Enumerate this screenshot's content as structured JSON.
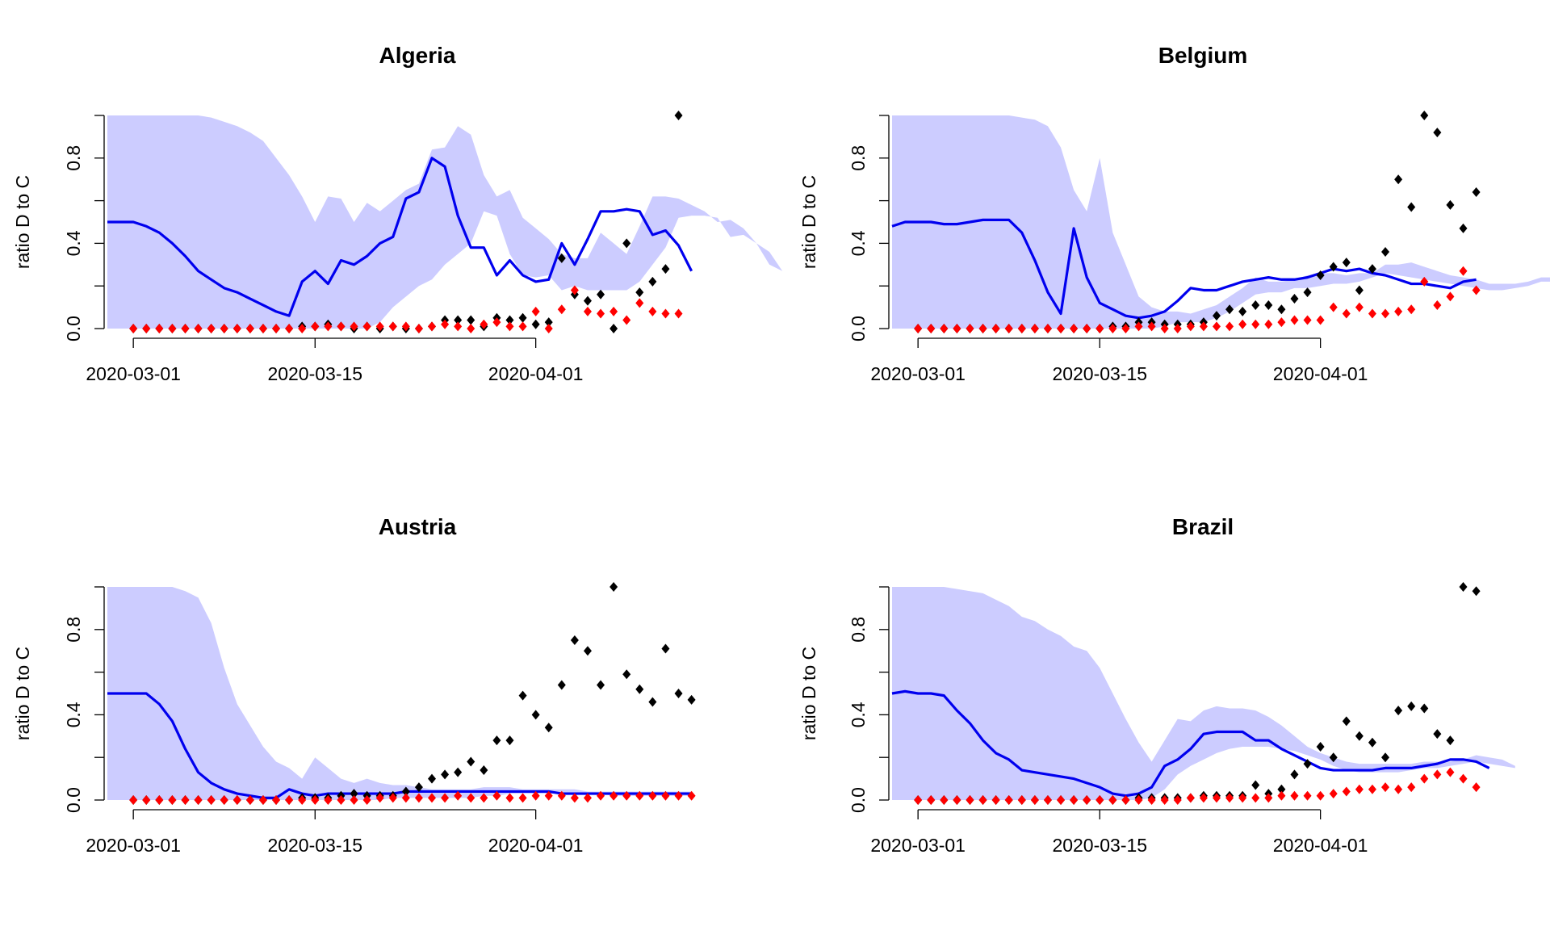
{
  "colors": {
    "band": "#ccccff",
    "line": "#0000ee",
    "black_points": "#000000",
    "red_points": "#ff0000"
  },
  "chart_data": [
    {
      "type": "line",
      "title": "Algeria",
      "ylabel": "ratio D to C",
      "xlabel": "",
      "ylim": [
        0,
        1
      ],
      "yticks": [
        "0.0",
        "0.4",
        "0.8"
      ],
      "xticks": [
        "2020-03-01",
        "2020-03-15",
        "2020-04-01"
      ],
      "band_lower": [
        0,
        0,
        0,
        0,
        0,
        0,
        0,
        0,
        0,
        0,
        0,
        0,
        0,
        0,
        0,
        0,
        0,
        0,
        0,
        0,
        0,
        0.03,
        0.1,
        0.15,
        0.2,
        0.23,
        0.3,
        0.35,
        0.4,
        0.55,
        0.53,
        0.35,
        0.25,
        0.24,
        0.25,
        0.18,
        0.2,
        0.18,
        0.18,
        0.18,
        0.18,
        0.22,
        0.3,
        0.38,
        0.52,
        0.53,
        0.53,
        0.52,
        0.43,
        0.44,
        0.4,
        0.36,
        0.27
      ],
      "band_upper": [
        1,
        1,
        1,
        1,
        1,
        1,
        1,
        1,
        0.99,
        0.97,
        0.95,
        0.92,
        0.88,
        0.8,
        0.72,
        0.62,
        0.5,
        0.62,
        0.61,
        0.5,
        0.59,
        0.55,
        0.6,
        0.65,
        0.68,
        0.84,
        0.85,
        0.95,
        0.91,
        0.72,
        0.62,
        0.65,
        0.52,
        0.47,
        0.42,
        0.35,
        0.33,
        0.33,
        0.45,
        0.4,
        0.35,
        0.48,
        0.62,
        0.62,
        0.61,
        0.58,
        0.55,
        0.5,
        0.51,
        0.47,
        0.4,
        0.3,
        0.27
      ],
      "series": [
        {
          "kind": "line",
          "values": [
            0.5,
            0.5,
            0.5,
            0.48,
            0.45,
            0.4,
            0.34,
            0.27,
            0.23,
            0.19,
            0.17,
            0.14,
            0.11,
            0.08,
            0.06,
            0.22,
            0.27,
            0.21,
            0.32,
            0.3,
            0.34,
            0.4,
            0.43,
            0.61,
            0.64,
            0.8,
            0.76,
            0.53,
            0.38,
            0.38,
            0.25,
            0.32,
            0.25,
            0.22,
            0.23,
            0.4,
            0.3,
            0.42,
            0.55,
            0.55,
            0.56,
            0.55,
            0.44,
            0.46,
            0.39,
            0.27
          ]
        },
        {
          "kind": "points",
          "color": "black",
          "values": [
            0,
            0,
            0,
            0,
            0,
            0,
            0,
            0,
            0,
            0,
            0,
            0,
            0,
            0.01,
            0.01,
            0.02,
            0.01,
            0,
            0.01,
            0,
            0.01,
            0,
            0,
            0.01,
            0.04,
            0.04,
            0.04,
            0.01,
            0.05,
            0.04,
            0.05,
            0.02,
            0.03,
            0.33,
            0.16,
            0.13,
            0.16,
            0,
            0.4,
            0.17,
            0.22,
            0.28,
            1.0
          ]
        },
        {
          "kind": "points",
          "color": "red",
          "values": [
            0,
            0,
            0,
            0,
            0,
            0,
            0,
            0,
            0,
            0,
            0,
            0,
            0,
            0,
            0.01,
            0.01,
            0.01,
            0.01,
            0.01,
            0.01,
            0.01,
            0.01,
            0,
            0.01,
            0.02,
            0.01,
            0,
            0.02,
            0.03,
            0.01,
            0.01,
            0.08,
            0,
            0.09,
            0.18,
            0.08,
            0.07,
            0.08,
            0.04,
            0.12,
            0.08,
            0.07,
            0.07
          ]
        }
      ]
    },
    {
      "type": "line",
      "title": "Belgium",
      "ylabel": "ratio D to C",
      "xlabel": "",
      "ylim": [
        0,
        1
      ],
      "yticks": [
        "0.0",
        "0.4",
        "0.8"
      ],
      "xticks": [
        "2020-03-01",
        "2020-03-15",
        "2020-04-01"
      ],
      "band_lower": [
        0,
        0,
        0,
        0,
        0,
        0,
        0,
        0,
        0,
        0,
        0,
        0,
        0,
        0,
        0,
        0,
        0,
        0,
        0,
        0,
        0,
        0.01,
        0.03,
        0.03,
        0.03,
        0.05,
        0.08,
        0.12,
        0.16,
        0.17,
        0.17,
        0.19,
        0.19,
        0.2,
        0.21,
        0.21,
        0.22,
        0.24,
        0.26,
        0.25,
        0.24,
        0.23,
        0.22,
        0.21,
        0.2,
        0.19,
        0.18,
        0.18,
        0.19,
        0.2,
        0.22,
        0.22
      ],
      "band_upper": [
        1,
        1,
        1,
        1,
        1,
        1,
        1,
        1,
        1,
        1,
        0.99,
        0.98,
        0.95,
        0.85,
        0.65,
        0.55,
        0.8,
        0.45,
        0.3,
        0.15,
        0.1,
        0.08,
        0.08,
        0.07,
        0.09,
        0.11,
        0.15,
        0.19,
        0.24,
        0.22,
        0.22,
        0.23,
        0.25,
        0.26,
        0.26,
        0.25,
        0.26,
        0.26,
        0.3,
        0.3,
        0.31,
        0.29,
        0.27,
        0.25,
        0.24,
        0.23,
        0.21,
        0.21,
        0.21,
        0.22,
        0.24,
        0.24
      ],
      "series": [
        {
          "kind": "line",
          "values": [
            0.48,
            0.5,
            0.5,
            0.5,
            0.49,
            0.49,
            0.5,
            0.51,
            0.51,
            0.51,
            0.45,
            0.32,
            0.17,
            0.07,
            0.47,
            0.24,
            0.12,
            0.09,
            0.06,
            0.05,
            0.06,
            0.08,
            0.13,
            0.19,
            0.18,
            0.18,
            0.2,
            0.22,
            0.23,
            0.24,
            0.23,
            0.23,
            0.24,
            0.26,
            0.28,
            0.27,
            0.28,
            0.26,
            0.25,
            0.23,
            0.21,
            0.21,
            0.2,
            0.19,
            0.22,
            0.23
          ]
        },
        {
          "kind": "points",
          "color": "black",
          "values": [
            0,
            0,
            0,
            0,
            0,
            0,
            0,
            0,
            0,
            0,
            0,
            0,
            0,
            0,
            0,
            0.01,
            0.01,
            0.03,
            0.03,
            0.02,
            0.02,
            0.02,
            0.03,
            0.06,
            0.09,
            0.08,
            0.11,
            0.11,
            0.09,
            0.14,
            0.17,
            0.25,
            0.29,
            0.31,
            0.18,
            0.28,
            0.36,
            0.7,
            0.57,
            1.0,
            0.92,
            0.58,
            0.47,
            0.64
          ]
        },
        {
          "kind": "points",
          "color": "red",
          "values": [
            0,
            0,
            0,
            0,
            0,
            0,
            0,
            0,
            0,
            0,
            0,
            0,
            0,
            0,
            0,
            0,
            0,
            0.01,
            0.01,
            0,
            0,
            0.01,
            0.01,
            0.01,
            0.01,
            0.02,
            0.02,
            0.02,
            0.03,
            0.04,
            0.04,
            0.04,
            0.1,
            0.07,
            0.1,
            0.07,
            0.07,
            0.08,
            0.09,
            0.22,
            0.11,
            0.15,
            0.27,
            0.18
          ]
        }
      ]
    },
    {
      "type": "line",
      "title": "Austria",
      "ylabel": "ratio D to C",
      "xlabel": "",
      "ylim": [
        0,
        1
      ],
      "yticks": [
        "0.0",
        "0.4",
        "0.8"
      ],
      "xticks": [
        "2020-03-01",
        "2020-03-15",
        "2020-04-01"
      ],
      "band_lower": [
        0,
        0,
        0,
        0,
        0,
        0,
        0,
        0,
        0,
        0,
        0,
        0,
        0,
        0,
        0,
        0,
        0,
        0,
        0,
        0,
        0,
        0,
        0.01,
        0.01,
        0.01,
        0.01,
        0.01,
        0.01,
        0.01,
        0.02,
        0.02,
        0.03,
        0.03,
        0.03,
        0.03,
        0.03,
        0.03,
        0.03,
        0.03,
        0.02,
        0.02,
        0.02,
        0.02,
        0.02,
        0.02,
        0.02
      ],
      "band_upper": [
        1,
        1,
        1,
        1,
        1,
        1,
        0.98,
        0.95,
        0.83,
        0.62,
        0.45,
        0.35,
        0.25,
        0.18,
        0.15,
        0.1,
        0.2,
        0.15,
        0.1,
        0.08,
        0.1,
        0.08,
        0.07,
        0.07,
        0.06,
        0.05,
        0.05,
        0.05,
        0.05,
        0.06,
        0.06,
        0.06,
        0.05,
        0.05,
        0.05,
        0.05,
        0.05,
        0.04,
        0.04,
        0.04,
        0.04,
        0.04,
        0.04,
        0.04,
        0.04,
        0.04
      ],
      "series": [
        {
          "kind": "line",
          "values": [
            0.5,
            0.5,
            0.5,
            0.5,
            0.45,
            0.37,
            0.24,
            0.13,
            0.08,
            0.05,
            0.03,
            0.02,
            0.01,
            0.01,
            0.05,
            0.03,
            0.02,
            0.03,
            0.03,
            0.03,
            0.03,
            0.03,
            0.03,
            0.04,
            0.04,
            0.04,
            0.04,
            0.04,
            0.04,
            0.04,
            0.04,
            0.04,
            0.04,
            0.04,
            0.04,
            0.03,
            0.03,
            0.03,
            0.03,
            0.03,
            0.03,
            0.03,
            0.03,
            0.03,
            0.03,
            0.03
          ]
        },
        {
          "kind": "points",
          "color": "black",
          "values": [
            0,
            0,
            0,
            0,
            0,
            0,
            0,
            0,
            0,
            0,
            0,
            0,
            0,
            0.01,
            0.01,
            0.01,
            0.02,
            0.03,
            0.02,
            0.02,
            0.02,
            0.04,
            0.06,
            0.1,
            0.12,
            0.13,
            0.18,
            0.14,
            0.28,
            0.28,
            0.49,
            0.4,
            0.34,
            0.54,
            0.75,
            0.7,
            0.54,
            1.0,
            0.59,
            0.52,
            0.46,
            0.71,
            0.5,
            0.47
          ]
        },
        {
          "kind": "points",
          "color": "red",
          "values": [
            0,
            0,
            0,
            0,
            0,
            0,
            0,
            0,
            0,
            0,
            0,
            0,
            0,
            0,
            0,
            0,
            0,
            0,
            0,
            0.01,
            0.01,
            0.01,
            0.01,
            0.01,
            0.01,
            0.02,
            0.01,
            0.01,
            0.02,
            0.01,
            0.01,
            0.02,
            0.02,
            0.02,
            0.01,
            0.01,
            0.02,
            0.02,
            0.02,
            0.02,
            0.02,
            0.02,
            0.02,
            0.02
          ]
        }
      ]
    },
    {
      "type": "line",
      "title": "Brazil",
      "ylabel": "ratio D to C",
      "xlabel": "",
      "ylim": [
        0,
        1
      ],
      "yticks": [
        "0.0",
        "0.4",
        "0.8"
      ],
      "xticks": [
        "2020-03-01",
        "2020-03-15",
        "2020-04-01"
      ],
      "band_lower": [
        0,
        0,
        0,
        0,
        0,
        0,
        0,
        0,
        0,
        0,
        0,
        0,
        0,
        0,
        0,
        0,
        0,
        0,
        0,
        0,
        0.01,
        0.05,
        0.12,
        0.16,
        0.19,
        0.22,
        0.24,
        0.25,
        0.25,
        0.25,
        0.24,
        0.23,
        0.21,
        0.19,
        0.16,
        0.14,
        0.13,
        0.13,
        0.13,
        0.13,
        0.14,
        0.15,
        0.15,
        0.16,
        0.17,
        0.18,
        0.17,
        0.16,
        0.15
      ],
      "band_upper": [
        1,
        1,
        1,
        1,
        1,
        0.99,
        0.98,
        0.97,
        0.94,
        0.91,
        0.86,
        0.84,
        0.8,
        0.77,
        0.72,
        0.7,
        0.62,
        0.5,
        0.38,
        0.27,
        0.18,
        0.28,
        0.38,
        0.37,
        0.42,
        0.44,
        0.43,
        0.43,
        0.42,
        0.39,
        0.35,
        0.3,
        0.25,
        0.22,
        0.2,
        0.18,
        0.17,
        0.17,
        0.17,
        0.17,
        0.17,
        0.18,
        0.18,
        0.18,
        0.19,
        0.21,
        0.2,
        0.19,
        0.16
      ],
      "series": [
        {
          "kind": "line",
          "values": [
            0.5,
            0.51,
            0.5,
            0.5,
            0.49,
            0.42,
            0.36,
            0.28,
            0.22,
            0.19,
            0.14,
            0.13,
            0.12,
            0.11,
            0.1,
            0.08,
            0.06,
            0.03,
            0.02,
            0.03,
            0.06,
            0.16,
            0.19,
            0.24,
            0.31,
            0.32,
            0.32,
            0.32,
            0.28,
            0.28,
            0.24,
            0.21,
            0.18,
            0.15,
            0.14,
            0.14,
            0.14,
            0.14,
            0.15,
            0.15,
            0.15,
            0.16,
            0.17,
            0.19,
            0.19,
            0.18,
            0.15
          ]
        },
        {
          "kind": "points",
          "color": "black",
          "values": [
            0,
            0,
            0,
            0,
            0,
            0,
            0,
            0,
            0,
            0,
            0,
            0,
            0,
            0,
            0,
            0,
            0,
            0.01,
            0.01,
            0.01,
            0.01,
            0.01,
            0.02,
            0.02,
            0.02,
            0.02,
            0.07,
            0.03,
            0.05,
            0.12,
            0.17,
            0.25,
            0.2,
            0.37,
            0.3,
            0.27,
            0.2,
            0.42,
            0.44,
            0.43,
            0.31,
            0.28,
            1.0,
            0.98
          ]
        },
        {
          "kind": "points",
          "color": "red",
          "values": [
            0,
            0,
            0,
            0,
            0,
            0,
            0,
            0,
            0,
            0,
            0,
            0,
            0,
            0,
            0,
            0,
            0,
            0,
            0,
            0,
            0,
            0.01,
            0.01,
            0.01,
            0.01,
            0.01,
            0.01,
            0.01,
            0.02,
            0.02,
            0.02,
            0.02,
            0.03,
            0.04,
            0.05,
            0.05,
            0.06,
            0.05,
            0.06,
            0.1,
            0.12,
            0.13,
            0.1,
            0.06
          ]
        }
      ]
    }
  ]
}
